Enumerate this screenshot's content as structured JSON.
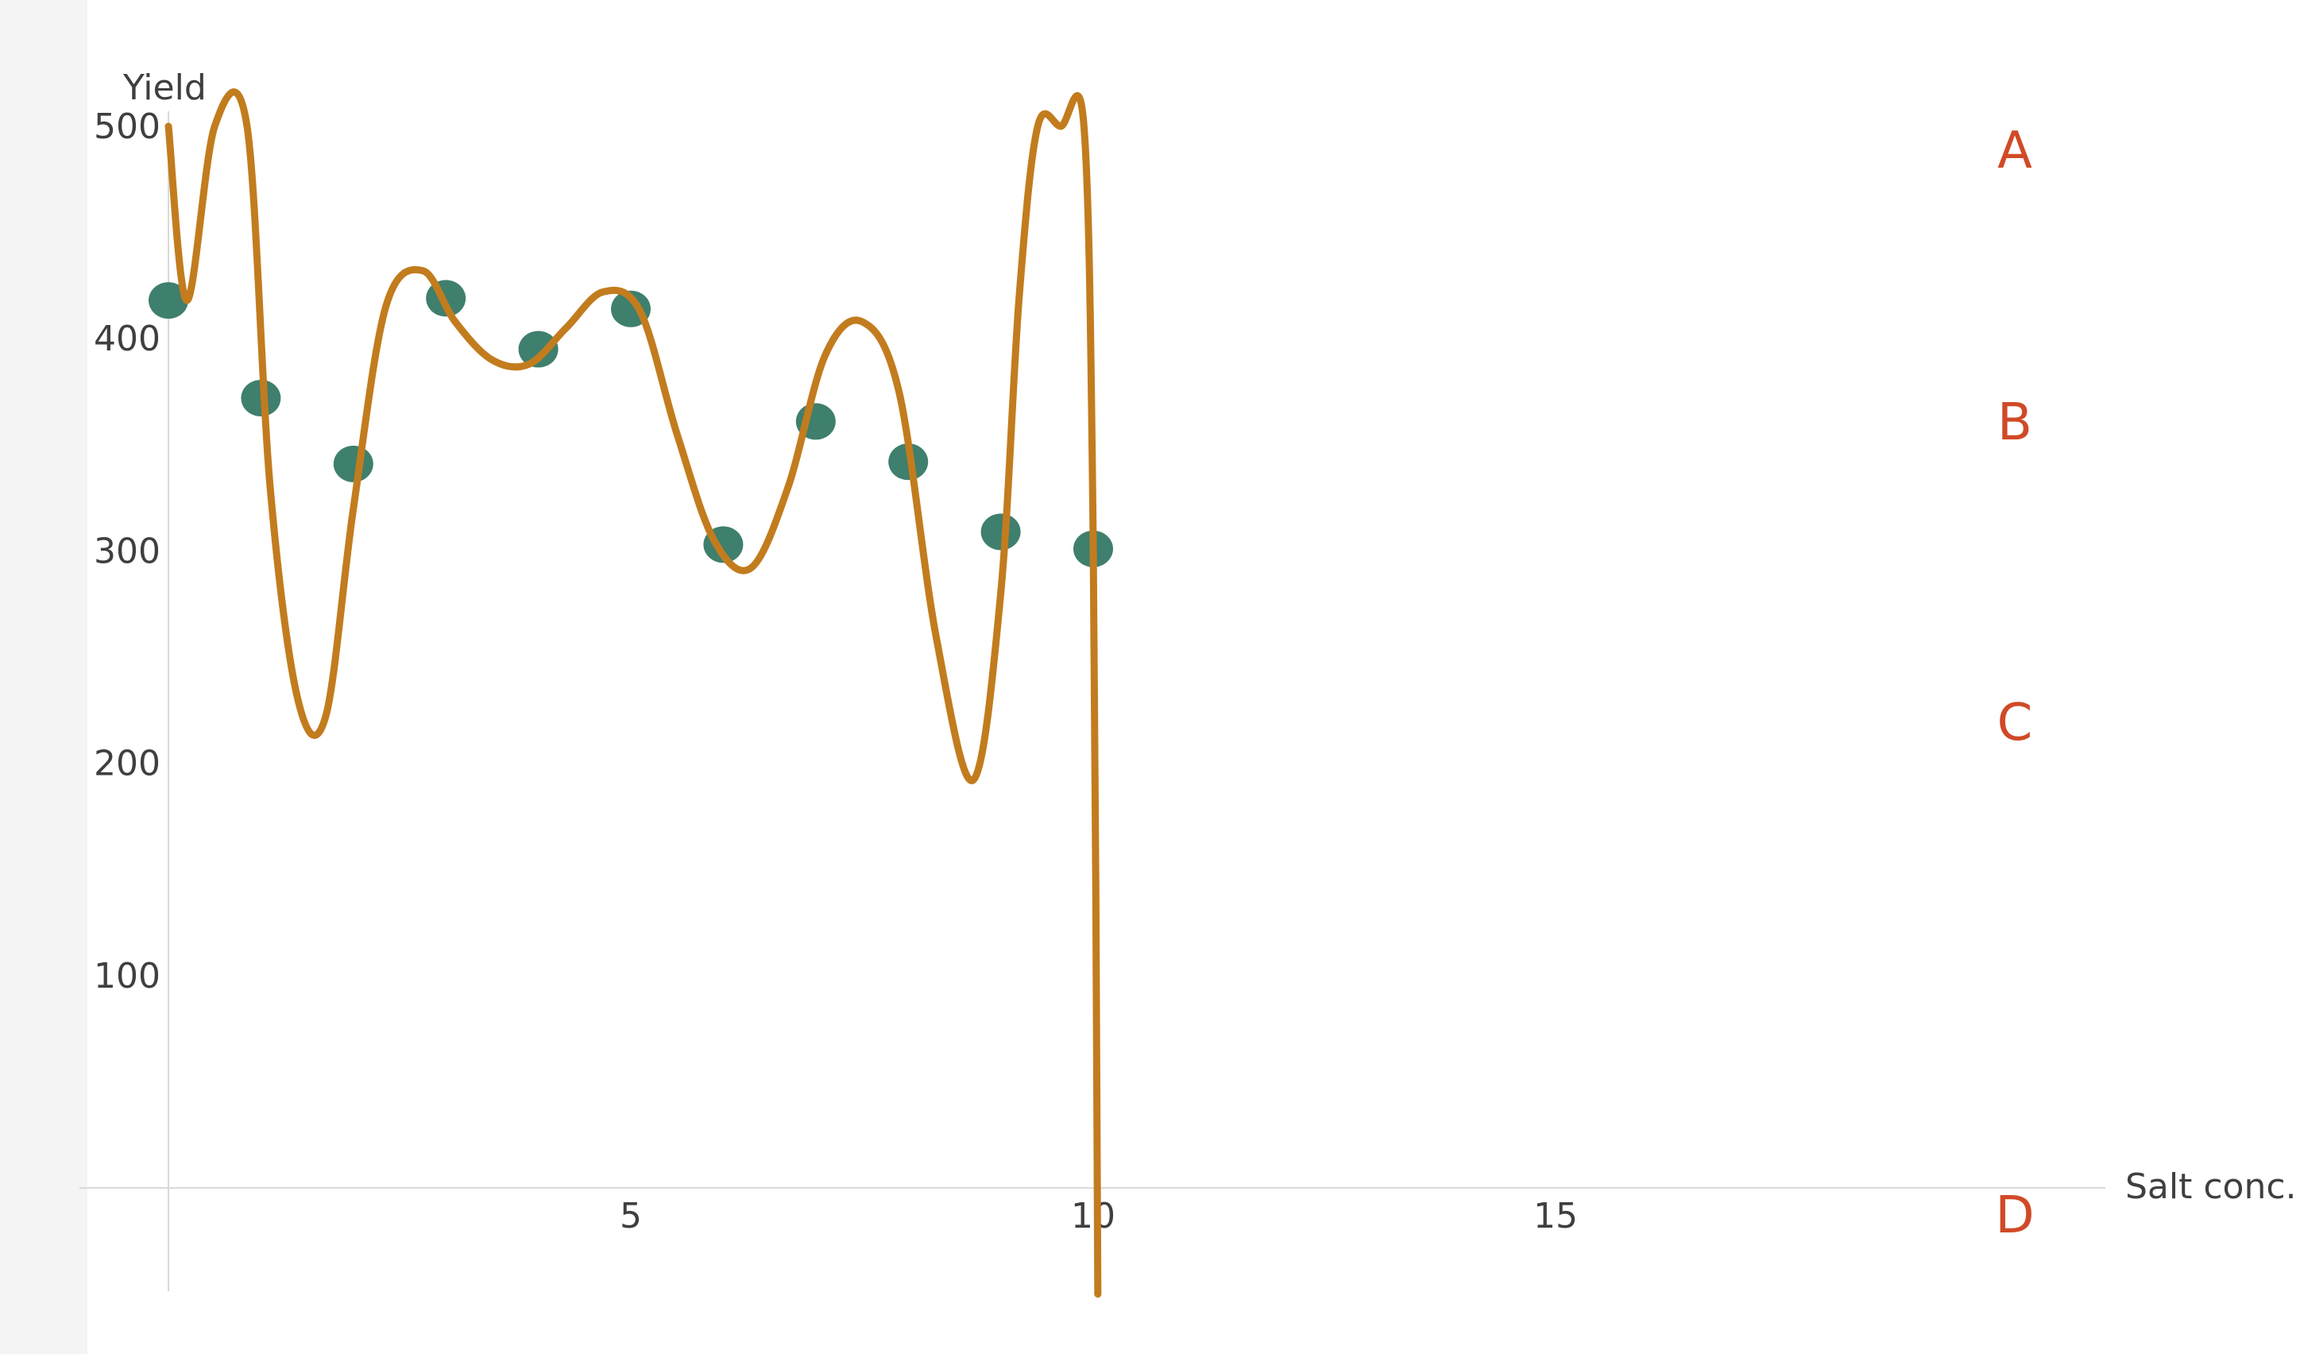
{
  "chart_data": {
    "type": "scatter",
    "title": "",
    "xlabel": "Salt conc.",
    "ylabel": "Yield",
    "xlim": [
      -1,
      21
    ],
    "ylim": [
      -50,
      500
    ],
    "x_ticks": [
      5,
      10,
      15
    ],
    "y_ticks": [
      100,
      200,
      300,
      400,
      500
    ],
    "grid": false,
    "series": [
      {
        "kind": "points",
        "color": "#3f7f6d",
        "x": [
          0,
          1,
          2,
          3,
          4,
          5,
          6,
          7,
          8,
          9,
          10
        ],
        "y": [
          418,
          372,
          341,
          419,
          395,
          414,
          303,
          361,
          342,
          309,
          301
        ]
      },
      {
        "kind": "fitted-curve",
        "color": "#c27c1e",
        "x": [
          0,
          0.2,
          0.5,
          0.85,
          1.1,
          1.4,
          1.7,
          2.0,
          2.35,
          2.75,
          3.1,
          3.5,
          3.9,
          4.3,
          4.7,
          5.1,
          5.5,
          5.9,
          6.3,
          6.7,
          7.1,
          7.5,
          7.9,
          8.3,
          8.7,
          9.0,
          9.2,
          9.4,
          9.65,
          9.9,
          10.0,
          10.05
        ],
        "y": [
          500,
          418,
          500,
          500,
          330,
          230,
          222,
          320,
          415,
          432,
          408,
          390,
          388,
          405,
          422,
          413,
          355,
          305,
          292,
          330,
          392,
          408,
          375,
          260,
          192,
          280,
          420,
          500,
          500,
          500,
          305,
          -50
        ]
      }
    ]
  },
  "options": {
    "color": "#d04a27",
    "labels": [
      "A",
      "B",
      "C",
      "D"
    ]
  }
}
